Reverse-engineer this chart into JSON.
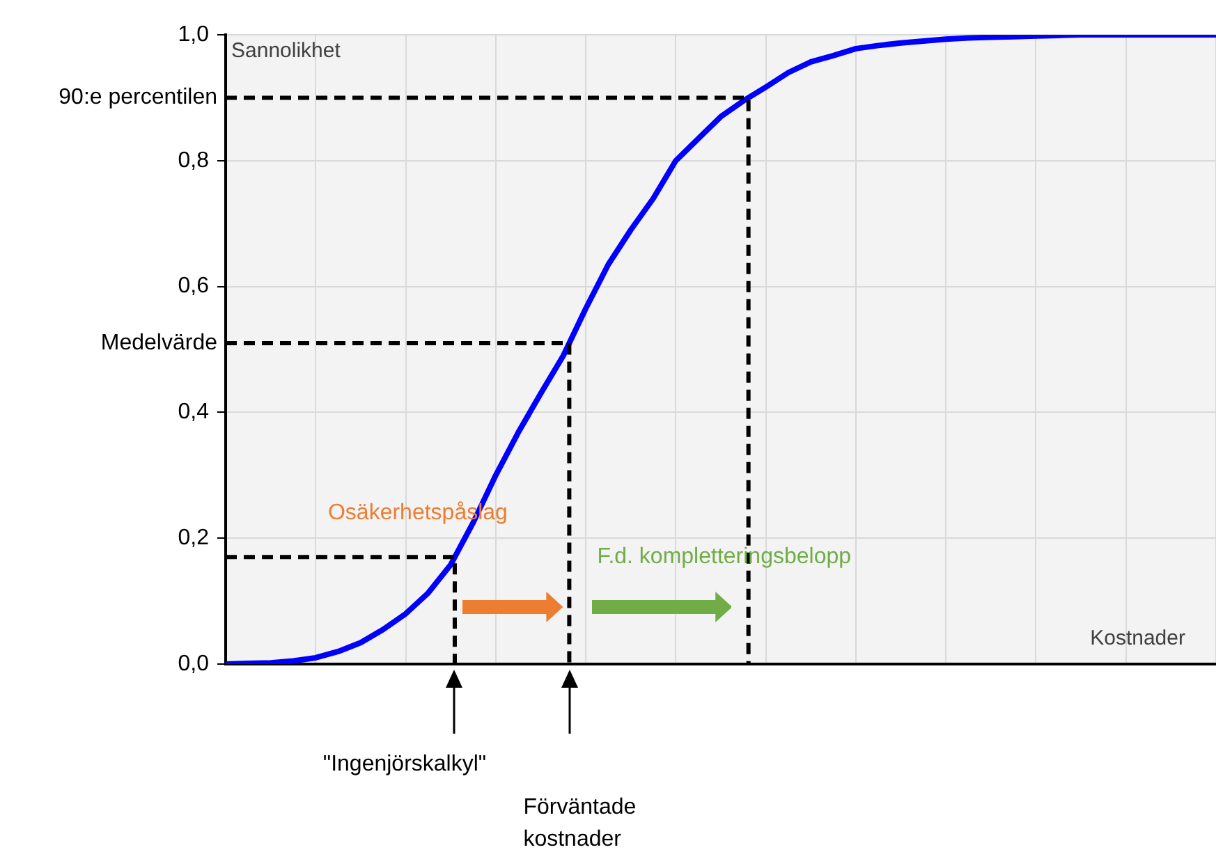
{
  "chart_data": {
    "type": "line",
    "xlabel": "Kostnader",
    "ylabel": "Sannolikhet",
    "categories": [
      null,
      null,
      null,
      null,
      null,
      null,
      null,
      null,
      null,
      null,
      null,
      null,
      null,
      null,
      null,
      null,
      null,
      null,
      null,
      null,
      null,
      null,
      null,
      null,
      null,
      null,
      null,
      null,
      null,
      null,
      null,
      null,
      null,
      null,
      null,
      null,
      null,
      null,
      null,
      null,
      null,
      null,
      null,
      null,
      null
    ],
    "series": [
      {
        "color": "#0000ff",
        "values": [
          0,
          0.001,
          0.002,
          0.005,
          0.01,
          0.02,
          0.034,
          0.055,
          0.08,
          0.113,
          0.158,
          0.225,
          0.3,
          0.368,
          0.43,
          0.49,
          0.565,
          0.635,
          0.69,
          0.74,
          0.8,
          0.835,
          0.87,
          0.895,
          0.917,
          0.94,
          0.957,
          0.967,
          0.978,
          0.983,
          0.987,
          0.99,
          0.993,
          0.995,
          0.996,
          0.997,
          0.998,
          0.999,
          1,
          1,
          1,
          1,
          1,
          1,
          1
        ]
      }
    ],
    "ylim": [
      0,
      1
    ],
    "yticks": [
      {
        "value": 0,
        "label": "0,0"
      },
      {
        "value": 0.2,
        "label": "0,2"
      },
      {
        "value": 0.4,
        "label": "0,4"
      },
      {
        "value": 0.6,
        "label": "0,6"
      },
      {
        "value": 0.8,
        "label": "0,8"
      },
      {
        "value": 1,
        "label": "1,0"
      }
    ],
    "ref_lines": [
      {
        "axis": "y",
        "value": 0.9,
        "label": "90:e percentilen",
        "color": "#000000",
        "line_style": "dashed"
      },
      {
        "axis": "y",
        "value": 0.51,
        "label": "Medelvärde",
        "color": "#000000",
        "line_style": "dashed"
      },
      {
        "axis": "y",
        "value": 0.17,
        "color": "#000000",
        "line_style": "dashed"
      }
    ],
    "annotations": [
      "\"Ingenjörskalkyl\"",
      "Förväntade kostnader",
      "Osäkerhetspåslag",
      "F.d. kompletteringsbelopp"
    ],
    "grid": true,
    "legend": false,
    "marker": "none",
    "line_style": "solid",
    "tick_labels": "y"
  }
}
